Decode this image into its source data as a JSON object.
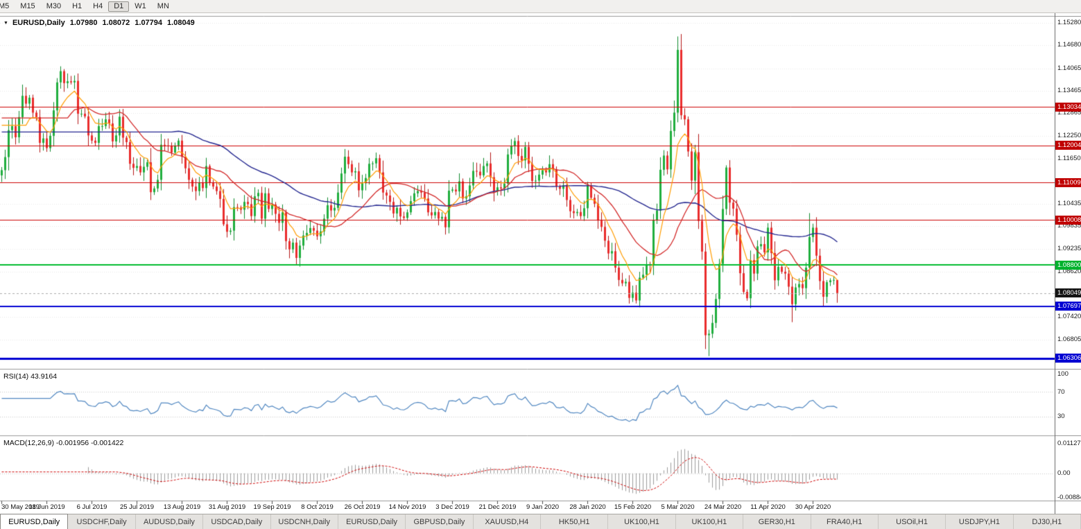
{
  "toolbar": {
    "timeframes": [
      "M5",
      "M15",
      "M30",
      "H1",
      "H4",
      "D1",
      "W1",
      "MN"
    ],
    "active": "D1"
  },
  "chart_header": {
    "dropdown_icon": "▼",
    "symbol": "EURUSD,Daily",
    "open": "1.07980",
    "high": "1.08072",
    "low": "1.07794",
    "close": "1.08049"
  },
  "right_axis": {
    "labels": [
      {
        "text": "1.15280",
        "price": 1.1528
      },
      {
        "text": "1.14680",
        "price": 1.1468
      },
      {
        "text": "1.14065",
        "price": 1.14065
      },
      {
        "text": "1.13465",
        "price": 1.13465
      },
      {
        "text": "1.12865",
        "price": 1.12865
      },
      {
        "text": "1.12250",
        "price": 1.1225
      },
      {
        "text": "1.11650",
        "price": 1.1165
      },
      {
        "text": "1.10435",
        "price": 1.10435
      },
      {
        "text": "1.09835",
        "price": 1.09835
      },
      {
        "text": "1.09235",
        "price": 1.09235
      },
      {
        "text": "1.08620",
        "price": 1.0862
      },
      {
        "text": "1.07420",
        "price": 1.0742
      },
      {
        "text": "1.06805",
        "price": 1.06805
      }
    ],
    "badges": [
      {
        "text": "1.13034",
        "price": 1.13034,
        "bg": "#c00000"
      },
      {
        "text": "1.12004",
        "price": 1.12004,
        "bg": "#c00000"
      },
      {
        "text": "1.11009",
        "price": 1.11009,
        "bg": "#c00000"
      },
      {
        "text": "1.10008",
        "price": 1.10008,
        "bg": "#c00000"
      },
      {
        "text": "1.08800",
        "price": 1.088,
        "bg": "#00b22d"
      },
      {
        "text": "1.08049",
        "price": 1.08049,
        "bg": "#141414"
      },
      {
        "text": "1.07697",
        "price": 1.07697,
        "bg": "#0000d2"
      },
      {
        "text": "1.06306",
        "price": 1.06306,
        "bg": "#0000d2"
      }
    ]
  },
  "rsi_panel": {
    "label": "RSI(14) 43.9164",
    "levels": [
      70,
      30
    ],
    "axis": [
      {
        "text": "100",
        "value": 100
      },
      {
        "text": "70",
        "value": 70
      },
      {
        "text": "30",
        "value": 30
      }
    ]
  },
  "macd_panel": {
    "label": "MACD(12,26,9) -0.001956 -0.001422",
    "axis": [
      {
        "text": "0.01127",
        "value": 0.01127
      },
      {
        "text": "0.00",
        "value": 0
      },
      {
        "text": "-0.00884",
        "value": -0.00884
      }
    ]
  },
  "x_axis": {
    "label_every": 13,
    "labels": [
      "30 May 2019",
      "18 Jun 2019",
      "6 Jul 2019",
      "25 Jul 2019",
      "13 Aug 2019",
      "31 Aug 2019",
      "19 Sep 2019",
      "8 Oct 2019",
      "26 Oct 2019",
      "14 Nov 2019",
      "3 Dec 2019",
      "21 Dec 2019",
      "9 Jan 2020",
      "28 Jan 2020",
      "15 Feb 2020",
      "5 Mar 2020",
      "24 Mar 2020",
      "11 Apr 2020",
      "30 Apr 2020"
    ]
  },
  "tabs": [
    {
      "label": "EURUSD,Daily",
      "active": true
    },
    {
      "label": "USDCHF,Daily",
      "active": false
    },
    {
      "label": "AUDUSD,Daily",
      "active": false
    },
    {
      "label": "USDCAD,Daily",
      "active": false
    },
    {
      "label": "USDCNH,Daily",
      "active": false
    },
    {
      "label": "EURUSD,Daily",
      "active": false
    },
    {
      "label": "GBPUSD,Daily",
      "active": false
    },
    {
      "label": "XAUUSD,H4",
      "active": false
    },
    {
      "label": "HK50,H1",
      "active": false
    },
    {
      "label": "UK100,H1",
      "active": false
    },
    {
      "label": "UK100,H1",
      "active": false
    },
    {
      "label": "GER30,H1",
      "active": false
    },
    {
      "label": "FRA40,H1",
      "active": false
    },
    {
      "label": "USOil,H1",
      "active": false
    },
    {
      "label": "USDJPY,H1",
      "active": false
    },
    {
      "label": "DJ30,H1",
      "active": false
    }
  ],
  "chart_data": {
    "type": "candlestick",
    "symbol": "EURUSD",
    "period": "Daily",
    "y_range": [
      1.0602,
      1.1545
    ],
    "first_open": 1.112,
    "closes": [
      1.1134,
      1.1169,
      1.1241,
      1.1252,
      1.1222,
      1.1276,
      1.1333,
      1.1312,
      1.1328,
      1.1288,
      1.1276,
      1.1207,
      1.1219,
      1.1193,
      1.1226,
      1.1294,
      1.1369,
      1.1399,
      1.1367,
      1.1372,
      1.1369,
      1.1373,
      1.1285,
      1.1285,
      1.1278,
      1.1227,
      1.1213,
      1.1207,
      1.1252,
      1.1252,
      1.127,
      1.1259,
      1.1211,
      1.1227,
      1.1277,
      1.1221,
      1.1209,
      1.1151,
      1.114,
      1.1145,
      1.1128,
      1.1143,
      1.1155,
      1.1075,
      1.1085,
      1.1108,
      1.1202,
      1.12,
      1.1199,
      1.1181,
      1.12,
      1.1213,
      1.117,
      1.1139,
      1.1108,
      1.109,
      1.1078,
      1.11,
      1.1086,
      1.1145,
      1.1101,
      1.109,
      1.1078,
      1.1057,
      1.0989,
      1.0969,
      1.0972,
      1.1035,
      1.1034,
      1.1028,
      1.1049,
      1.1043,
      1.1011,
      1.1064,
      1.1073,
      1.1004,
      1.1072,
      1.103,
      1.1042,
      1.1017,
      1.0993,
      1.1021,
      1.0944,
      1.0922,
      1.094,
      1.0899,
      1.0932,
      1.0959,
      1.0966,
      1.0979,
      1.0972,
      1.0957,
      1.097,
      1.1004,
      1.104,
      1.1026,
      1.1033,
      1.1074,
      1.1125,
      1.117,
      1.115,
      1.1128,
      1.1131,
      1.108,
      1.1099,
      1.1113,
      1.1151,
      1.1152,
      1.1166,
      1.1128,
      1.1074,
      1.1066,
      1.1049,
      1.1018,
      1.1033,
      1.101,
      1.1006,
      1.1021,
      1.1051,
      1.1072,
      1.1078,
      1.1074,
      1.1058,
      1.1021,
      1.1013,
      1.1022,
      1.1004,
      1.1009,
      1.0981,
      1.1079,
      1.1082,
      1.1077,
      1.1104,
      1.1058,
      1.1064,
      1.1093,
      1.1132,
      1.113,
      1.112,
      1.1145,
      1.1152,
      1.1115,
      1.1078,
      1.1088,
      1.1085,
      1.1098,
      1.1176,
      1.1199,
      1.1212,
      1.1172,
      1.116,
      1.1196,
      1.1151,
      1.1105,
      1.1106,
      1.1122,
      1.1134,
      1.1128,
      1.115,
      1.1136,
      1.109,
      1.1084,
      1.1093,
      1.1054,
      1.1024,
      1.1019,
      1.1022,
      1.1011,
      1.1032,
      1.1093,
      1.106,
      1.1044,
      1.0999,
      1.0982,
      1.0945,
      1.0911,
      1.0917,
      1.0873,
      1.084,
      1.0831,
      1.0835,
      1.0792,
      1.0806,
      1.0785,
      1.0846,
      1.0854,
      1.0881,
      1.088,
      1.1,
      1.1026,
      1.1135,
      1.1173,
      1.1136,
      1.1239,
      1.1288,
      1.1456,
      1.1281,
      1.127,
      1.1184,
      1.1106,
      1.1182,
      1.0998,
      1.0916,
      1.0692,
      1.0696,
      1.0725,
      1.0789,
      1.0883,
      1.103,
      1.1141,
      1.1047,
      1.1031,
      1.0961,
      1.0858,
      1.0808,
      1.0791,
      1.0893,
      1.0857,
      1.093,
      1.0936,
      1.0914,
      1.098,
      1.0912,
      1.0839,
      1.0875,
      1.0862,
      1.0857,
      1.0822,
      1.0775,
      1.082,
      1.0829,
      1.0818,
      1.0873,
      1.0955,
      1.098,
      1.0905,
      1.0837,
      1.0795,
      1.0834,
      1.0839,
      1.084,
      1.08049
    ],
    "wick_overrides": {
      "17": {
        "high": 1.1412
      },
      "85": {
        "low": 1.0879
      },
      "183": {
        "low": 1.0777
      },
      "195": {
        "high": 1.1492
      },
      "203": {
        "low": 1.0655
      },
      "204": {
        "low": 1.0636
      },
      "209": {
        "high": 1.1147
      },
      "228": {
        "low": 1.0727
      },
      "233": {
        "high": 1.1019
      },
      "241": {
        "high": 1.0807,
        "low": 1.0779
      }
    },
    "hlines": [
      {
        "price": 1.13034,
        "color": "#cc0000",
        "width": 1
      },
      {
        "price": 1.12004,
        "color": "#cc0000",
        "width": 1
      },
      {
        "price": 1.11009,
        "color": "#cc0000",
        "width": 1
      },
      {
        "price": 1.10008,
        "color": "#cc0000",
        "width": 1
      },
      {
        "price": 1.088,
        "color": "#00bb2f",
        "width": 2
      },
      {
        "price": 1.07697,
        "color": "#0000d2",
        "width": 2
      },
      {
        "price": 1.06306,
        "color": "#0000d2",
        "width": 3
      }
    ],
    "current_price": 1.08049,
    "candle_colors": {
      "up_fill": "#1fae3d",
      "up_wick": "#0e8a2c",
      "down_fill": "#ea2c2c",
      "down_wick": "#b31515"
    },
    "indicators": {
      "ma": [
        {
          "type": "sma",
          "period": 50,
          "color": "#23268f",
          "width": 1.4
        },
        {
          "type": "sma",
          "period": 20,
          "color": "#d22727",
          "width": 1.3
        },
        {
          "type": "ema",
          "period": 8,
          "color": "#ff9c00",
          "width": 1.2
        }
      ],
      "rsi": {
        "period": 14,
        "color": "#4f86c0",
        "value": 43.9164
      },
      "macd": {
        "fast": 12,
        "slow": 26,
        "signal": 9,
        "hist_color": "#9b9b9b",
        "signal_color": "#cc0000",
        "value": -0.001956,
        "signal_value": -0.001422
      }
    }
  }
}
